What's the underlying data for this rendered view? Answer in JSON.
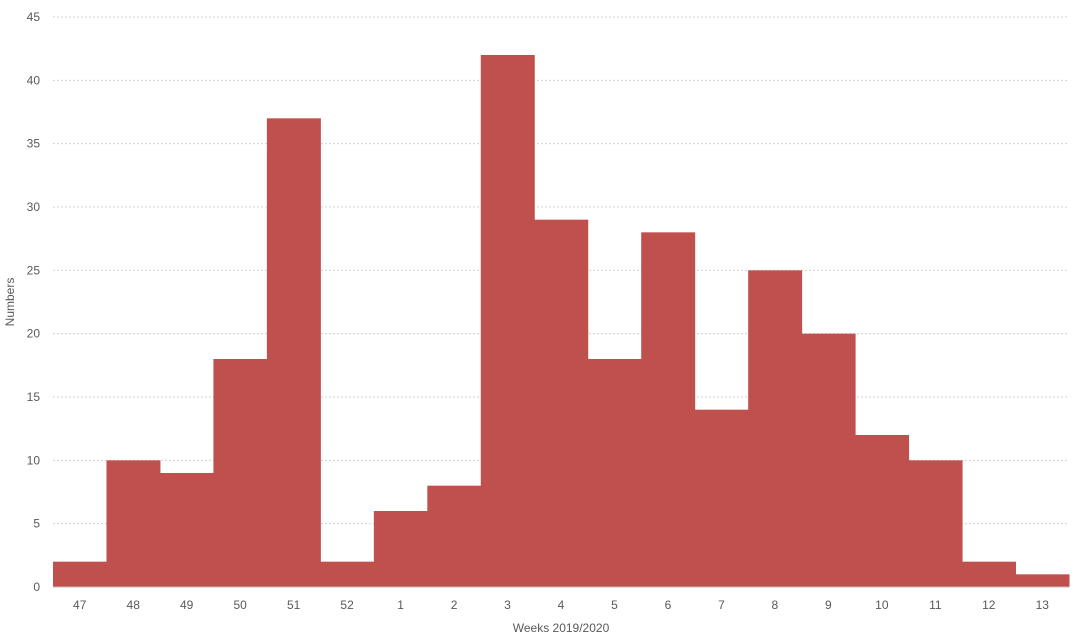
{
  "chart_data": {
    "type": "bar",
    "xlabel": "Weeks 2019/2020",
    "ylabel": "Numbers",
    "categories": [
      "47",
      "48",
      "49",
      "50",
      "51",
      "52",
      "1",
      "2",
      "3",
      "4",
      "5",
      "6",
      "7",
      "8",
      "9",
      "10",
      "11",
      "12",
      "13"
    ],
    "series": [
      {
        "values": [
          2,
          10,
          9,
          18,
          37,
          2,
          6,
          8,
          42,
          29,
          18,
          28,
          14,
          25,
          20,
          12,
          10,
          2,
          1
        ]
      }
    ],
    "ylim": [
      0,
      45
    ],
    "yticks": [
      0,
      5,
      10,
      15,
      20,
      25,
      30,
      35,
      40,
      45
    ],
    "grid": true,
    "bar_color": "#c0504d"
  }
}
